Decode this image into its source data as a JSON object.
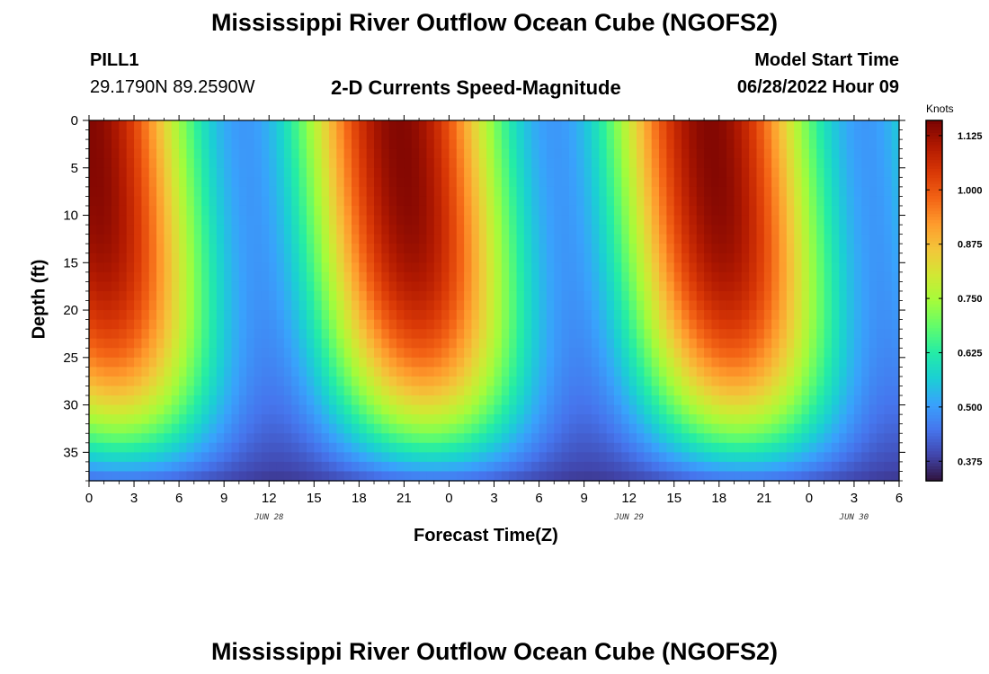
{
  "chart_data": {
    "type": "heatmap",
    "title": "Mississippi River Outflow Ocean Cube (NGOFS2)",
    "station": "PILL1",
    "location": "29.1790N  89.2590W",
    "subtitle": "2-D Currents Speed-Magnitude",
    "model_start_label": "Model Start Time",
    "model_start_value": "06/28/2022 Hour 09",
    "xlabel": "Forecast Time(Z)",
    "ylabel": "Depth (ft)",
    "x_ticks": [
      "0",
      "3",
      "6",
      "9",
      "12",
      "15",
      "18",
      "21",
      "0",
      "3",
      "6",
      "9",
      "12",
      "15",
      "18",
      "21",
      "0",
      "3",
      "6"
    ],
    "x_range_hours": [
      0,
      54
    ],
    "day_labels": [
      {
        "text": "JUN 28",
        "hour": 12
      },
      {
        "text": "JUN 29",
        "hour": 36
      },
      {
        "text": "JUN 30",
        "hour": 51
      }
    ],
    "y_ticks": [
      "0",
      "5",
      "10",
      "15",
      "20",
      "25",
      "30",
      "35"
    ],
    "y_tick_values": [
      0,
      5,
      10,
      15,
      20,
      25,
      30,
      35
    ],
    "ylim": [
      0,
      38
    ],
    "colorbar": {
      "unit": "Knots",
      "ticks": [
        "1.125",
        "1.000",
        "0.875",
        "0.750",
        "0.625",
        "0.500",
        "0.375"
      ],
      "tick_values": [
        1.125,
        1.0,
        0.875,
        0.75,
        0.625,
        0.5,
        0.375
      ],
      "range": [
        0.33,
        1.16
      ]
    },
    "speed_model": {
      "description": "approximate semi-diurnal current speed field",
      "speed_peaks_hours": [
        0,
        20,
        41.5
      ],
      "speed_troughs_hours": [
        9.5,
        31
      ],
      "max_speed": 1.15,
      "min_speed": 0.35
    }
  },
  "footer_title": "Mississippi River Outflow Ocean Cube (NGOFS2)",
  "colors": {
    "colormap": [
      "#30123b",
      "#4145ab",
      "#4675ed",
      "#39a2fc",
      "#1bcfd4",
      "#24eca6",
      "#61fc6c",
      "#a4fc3b",
      "#d1e834",
      "#f3c63a",
      "#fe9b2d",
      "#f36315",
      "#d93806",
      "#b11901",
      "#7a0402"
    ]
  }
}
